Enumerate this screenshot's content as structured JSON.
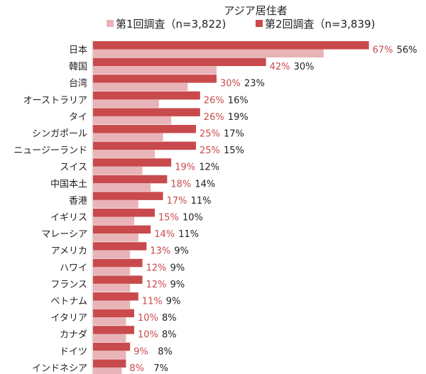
{
  "chart_data": {
    "type": "bar",
    "orientation": "horizontal",
    "title": "アジア居住者",
    "categories": [
      "日本",
      "韓国",
      "台湾",
      "オーストラリア",
      "タイ",
      "シンガポール",
      "ニュージーランド",
      "スイス",
      "中国本土",
      "香港",
      "イギリス",
      "マレーシア",
      "アメリカ",
      "ハワイ",
      "フランス",
      "ベトナム",
      "イタリア",
      "カナダ",
      "ドイツ",
      "インドネシア"
    ],
    "series": [
      {
        "name": "第1回調査（n=3,822)",
        "color": "#e8b4b8",
        "values": [
          56,
          30,
          23,
          16,
          19,
          17,
          15,
          12,
          14,
          11,
          10,
          11,
          9,
          9,
          9,
          9,
          8,
          8,
          8,
          7
        ]
      },
      {
        "name": "第2回調査（n=3,839)",
        "color": "#c94a4c",
        "values": [
          67,
          42,
          30,
          26,
          26,
          25,
          25,
          19,
          18,
          17,
          15,
          14,
          13,
          12,
          12,
          11,
          10,
          10,
          9,
          8
        ]
      }
    ],
    "value_suffix": "%",
    "xlim": [
      0,
      67
    ],
    "grid": false,
    "legend_position": "top"
  }
}
